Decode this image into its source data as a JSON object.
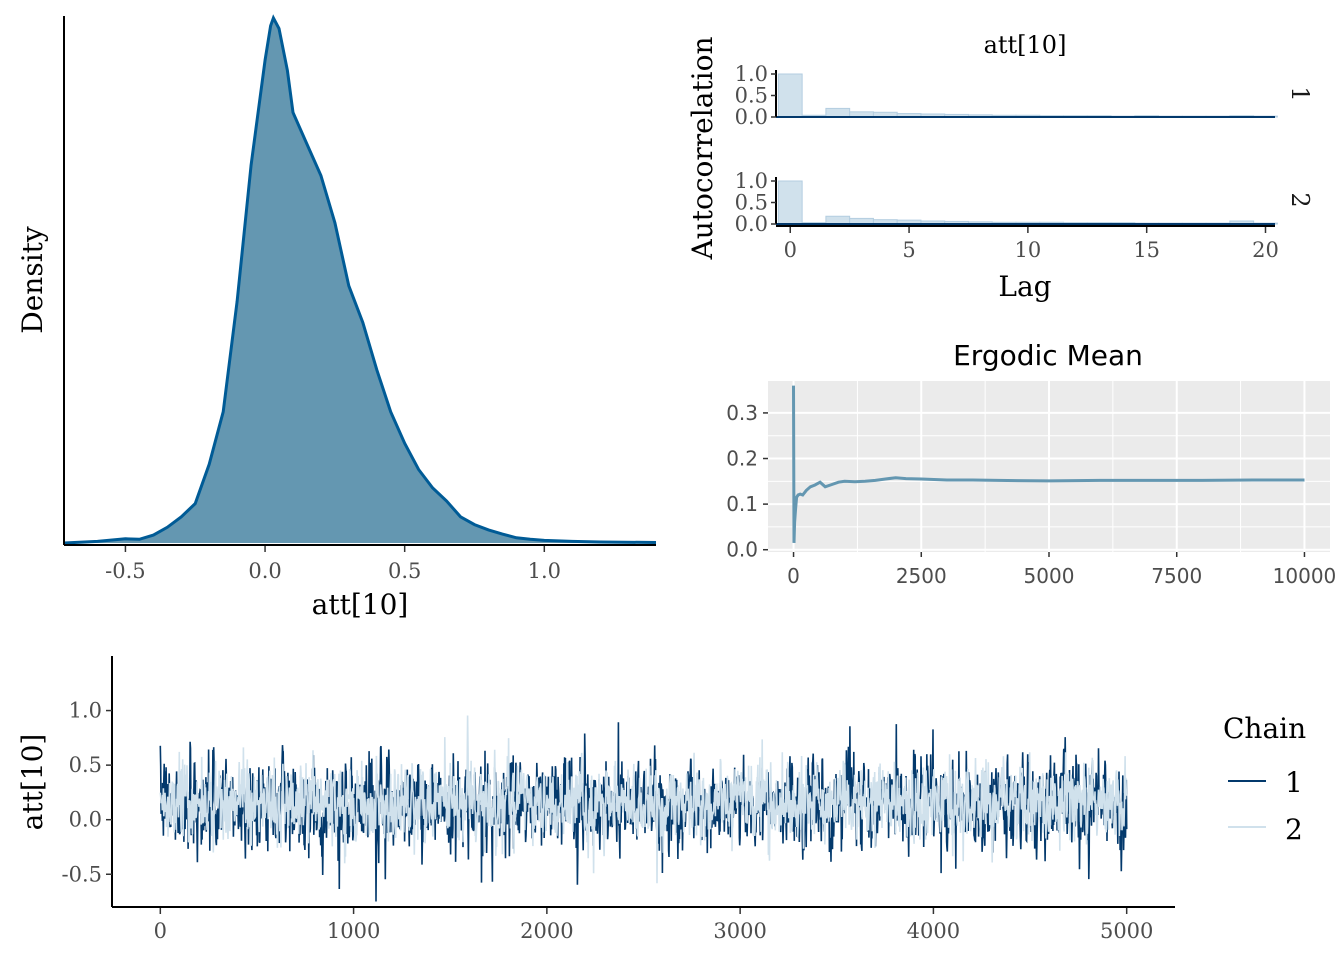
{
  "colors": {
    "density_fill": "#6497b1",
    "density_line": "#005b96",
    "chain1": "#03396c",
    "chain2": "#d0e1ec",
    "acf_bar_fill": "#d0e1ec",
    "acf_bar_line": "#b3cde0",
    "ergodic_line": "#6497b1",
    "ergodic_panel": "#ebebeb"
  },
  "chart_data": [
    {
      "id": "density",
      "type": "area",
      "xlabel": "att[10]",
      "ylabel": "Density",
      "xlim": [
        -0.72,
        1.4
      ],
      "xticks": [
        "-0.5",
        "0.0",
        "0.5",
        "1.0"
      ],
      "xtick_values": [
        -0.5,
        0.0,
        0.5,
        1.0
      ],
      "x": [
        -0.72,
        -0.6,
        -0.5,
        -0.45,
        -0.4,
        -0.35,
        -0.3,
        -0.25,
        -0.2,
        -0.15,
        -0.1,
        -0.05,
        0.0,
        0.02,
        0.03,
        0.05,
        0.08,
        0.1,
        0.15,
        0.2,
        0.25,
        0.3,
        0.35,
        0.4,
        0.45,
        0.5,
        0.55,
        0.6,
        0.65,
        0.7,
        0.75,
        0.8,
        0.85,
        0.9,
        0.95,
        1.0,
        1.1,
        1.2,
        1.4
      ],
      "y": [
        0.0,
        0.003,
        0.008,
        0.007,
        0.015,
        0.03,
        0.05,
        0.075,
        0.15,
        0.25,
        0.46,
        0.72,
        0.92,
        0.985,
        1.0,
        0.98,
        0.9,
        0.82,
        0.76,
        0.7,
        0.61,
        0.49,
        0.42,
        0.33,
        0.25,
        0.19,
        0.14,
        0.105,
        0.08,
        0.05,
        0.035,
        0.025,
        0.017,
        0.01,
        0.007,
        0.005,
        0.003,
        0.002,
        0.001
      ]
    },
    {
      "id": "autocorrelation",
      "type": "bar",
      "title": "att[10]",
      "xlabel": "Lag",
      "ylabel": "Autocorrelation",
      "xlim": [
        -0.6,
        20.4
      ],
      "ylim": [
        0,
        1
      ],
      "xticks": [
        "0",
        "5",
        "10",
        "15",
        "20"
      ],
      "xtick_values": [
        0,
        5,
        10,
        15,
        20
      ],
      "yticks": [
        "0.0",
        "0.5",
        "1.0"
      ],
      "ytick_values": [
        0,
        0.5,
        1
      ],
      "panels": [
        {
          "label": "1",
          "lags": [
            0,
            1,
            2,
            3,
            4,
            5,
            6,
            7,
            8,
            9,
            10,
            11,
            12,
            13,
            14,
            15,
            16,
            17,
            18,
            19,
            20
          ],
          "values": [
            1.0,
            0.04,
            0.2,
            0.12,
            0.11,
            0.08,
            0.07,
            0.06,
            0.05,
            0.04,
            0.04,
            0.03,
            0.03,
            0.03,
            0.02,
            0.03,
            0.02,
            0.02,
            0.02,
            0.03,
            0.02
          ]
        },
        {
          "label": "2",
          "lags": [
            0,
            1,
            2,
            3,
            4,
            5,
            6,
            7,
            8,
            9,
            10,
            11,
            12,
            13,
            14,
            15,
            16,
            17,
            18,
            19,
            20
          ],
          "values": [
            1.0,
            0.03,
            0.18,
            0.13,
            0.1,
            0.09,
            0.07,
            0.06,
            0.05,
            0.04,
            0.04,
            0.04,
            0.03,
            0.03,
            0.03,
            0.02,
            0.02,
            0.02,
            0.02,
            0.07,
            0.02
          ]
        }
      ]
    },
    {
      "id": "ergodic_mean",
      "type": "line",
      "title": "Ergodic Mean",
      "xlim": [
        -500,
        10500
      ],
      "ylim": [
        -0.005,
        0.37
      ],
      "xticks": [
        "0",
        "2500",
        "5000",
        "7500",
        "10000"
      ],
      "xtick_values": [
        0,
        2500,
        5000,
        7500,
        10000
      ],
      "yticks": [
        "0.0",
        "0.1",
        "0.2",
        "0.3"
      ],
      "ytick_values": [
        0,
        0.1,
        0.2,
        0.3
      ],
      "x": [
        0,
        8,
        20,
        40,
        60,
        90,
        130,
        180,
        250,
        330,
        420,
        520,
        620,
        750,
        880,
        1000,
        1200,
        1400,
        1600,
        1800,
        2000,
        2200,
        2500,
        3000,
        3500,
        4000,
        5000,
        6000,
        7000,
        8000,
        9000,
        10000
      ],
      "y": [
        0.36,
        0.015,
        0.06,
        0.09,
        0.115,
        0.12,
        0.122,
        0.12,
        0.13,
        0.138,
        0.142,
        0.148,
        0.138,
        0.143,
        0.148,
        0.15,
        0.149,
        0.15,
        0.152,
        0.155,
        0.158,
        0.156,
        0.155,
        0.153,
        0.153,
        0.152,
        0.151,
        0.152,
        0.152,
        0.152,
        0.153,
        0.153
      ]
    },
    {
      "id": "traceplot",
      "type": "line",
      "ylabel": "att[10]",
      "xlim": [
        -250,
        5250
      ],
      "ylim": [
        -0.8,
        1.5
      ],
      "xticks": [
        "0",
        "1000",
        "2000",
        "3000",
        "4000",
        "5000"
      ],
      "xtick_values": [
        0,
        1000,
        2000,
        3000,
        4000,
        5000
      ],
      "yticks": [
        "-0.5",
        "0.0",
        "0.5",
        "1.0"
      ],
      "ytick_values": [
        -0.5,
        0,
        0.5,
        1.0
      ],
      "iterations": 5000,
      "legend": {
        "title": "Chain",
        "position": "right"
      },
      "series": [
        {
          "name": "1",
          "mean": 0.15,
          "sd": 0.2
        },
        {
          "name": "2",
          "mean": 0.15,
          "sd": 0.17
        }
      ]
    }
  ]
}
